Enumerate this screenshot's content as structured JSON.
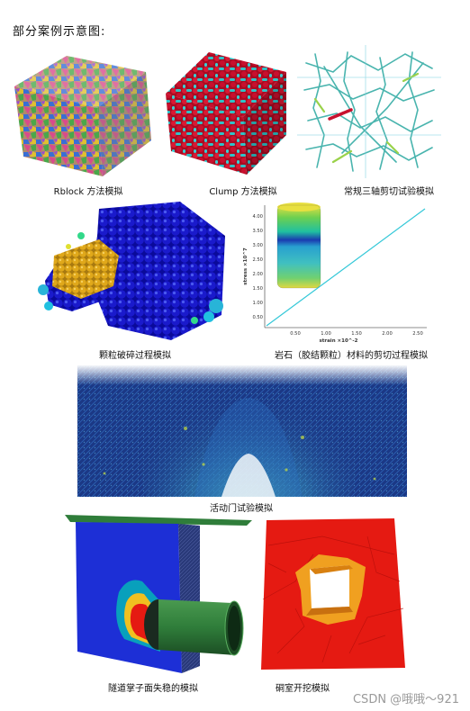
{
  "heading": "部分案例示意图:",
  "captions": {
    "rblock": "Rblock 方法模拟",
    "clump": "Clump 方法模拟",
    "triaxial": "常规三轴剪切试验模拟",
    "crushing": "颗粒破碎过程模拟",
    "rock_shear": "岩石（胶结颗粒）材料的剪切过程模拟",
    "trapdoor": "活动门试验模拟",
    "tunnel": "隧道掌子面失稳的模拟",
    "cavern": "硐室开挖模拟"
  },
  "plot": {
    "ylabel": "stress ×10^7",
    "xlabel": "strain ×10^-2",
    "yticks": [
      "4.00",
      "3.50",
      "3.00",
      "2.50",
      "2.00",
      "1.50",
      "1.00",
      "0.50"
    ],
    "xticks": [
      "0.50",
      "1.00",
      "1.50",
      "2.00",
      "2.50"
    ]
  },
  "watermark": "CSDN @哦哦～921",
  "colors": {
    "clump_red": "#c8102e",
    "clump_cyan": "#2ec4c9",
    "crush_blue": "#1a1acc",
    "crush_gold": "#e0a81a",
    "tunnel_blue": "#1d2fd6",
    "tunnel_green": "#2f7d3a",
    "cavern_red": "#e51a12",
    "cavern_orange": "#f0a020"
  }
}
